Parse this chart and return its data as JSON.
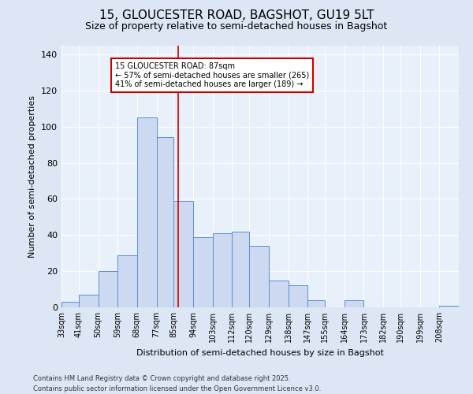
{
  "title": "15, GLOUCESTER ROAD, BAGSHOT, GU19 5LT",
  "subtitle": "Size of property relative to semi-detached houses in Bagshot",
  "xlabel": "Distribution of semi-detached houses by size in Bagshot",
  "ylabel": "Number of semi-detached properties",
  "bin_labels": [
    "33sqm",
    "41sqm",
    "50sqm",
    "59sqm",
    "68sqm",
    "77sqm",
    "85sqm",
    "94sqm",
    "103sqm",
    "112sqm",
    "120sqm",
    "129sqm",
    "138sqm",
    "147sqm",
    "155sqm",
    "164sqm",
    "173sqm",
    "182sqm",
    "190sqm",
    "199sqm",
    "208sqm"
  ],
  "bar_values": [
    3,
    7,
    20,
    29,
    105,
    94,
    59,
    39,
    41,
    42,
    34,
    15,
    12,
    4,
    0,
    4,
    0,
    0,
    0,
    0,
    1
  ],
  "bar_color": "#ccd9f0",
  "bar_edge_color": "#5b8fd4",
  "vline_x": 87,
  "vline_color": "#cc0000",
  "annotation_title": "15 GLOUCESTER ROAD: 87sqm",
  "annotation_line1": "← 57% of semi-detached houses are smaller (265)",
  "annotation_line2": "41% of semi-detached houses are larger (189) →",
  "annotation_box_facecolor": "white",
  "annotation_box_edgecolor": "#cc0000",
  "ylim": [
    0,
    145
  ],
  "yticks": [
    0,
    20,
    40,
    60,
    80,
    100,
    120,
    140
  ],
  "footer_line1": "Contains HM Land Registry data © Crown copyright and database right 2025.",
  "footer_line2": "Contains public sector information licensed under the Open Government Licence v3.0.",
  "bg_color": "#dce6f5",
  "plot_bg_color": "#e8f0fa",
  "grid_color": "#ffffff",
  "title_fontsize": 11,
  "subtitle_fontsize": 9,
  "ylabel_fontsize": 8,
  "xlabel_fontsize": 8,
  "tick_fontsize": 7,
  "annot_fontsize": 7,
  "footer_fontsize": 6
}
